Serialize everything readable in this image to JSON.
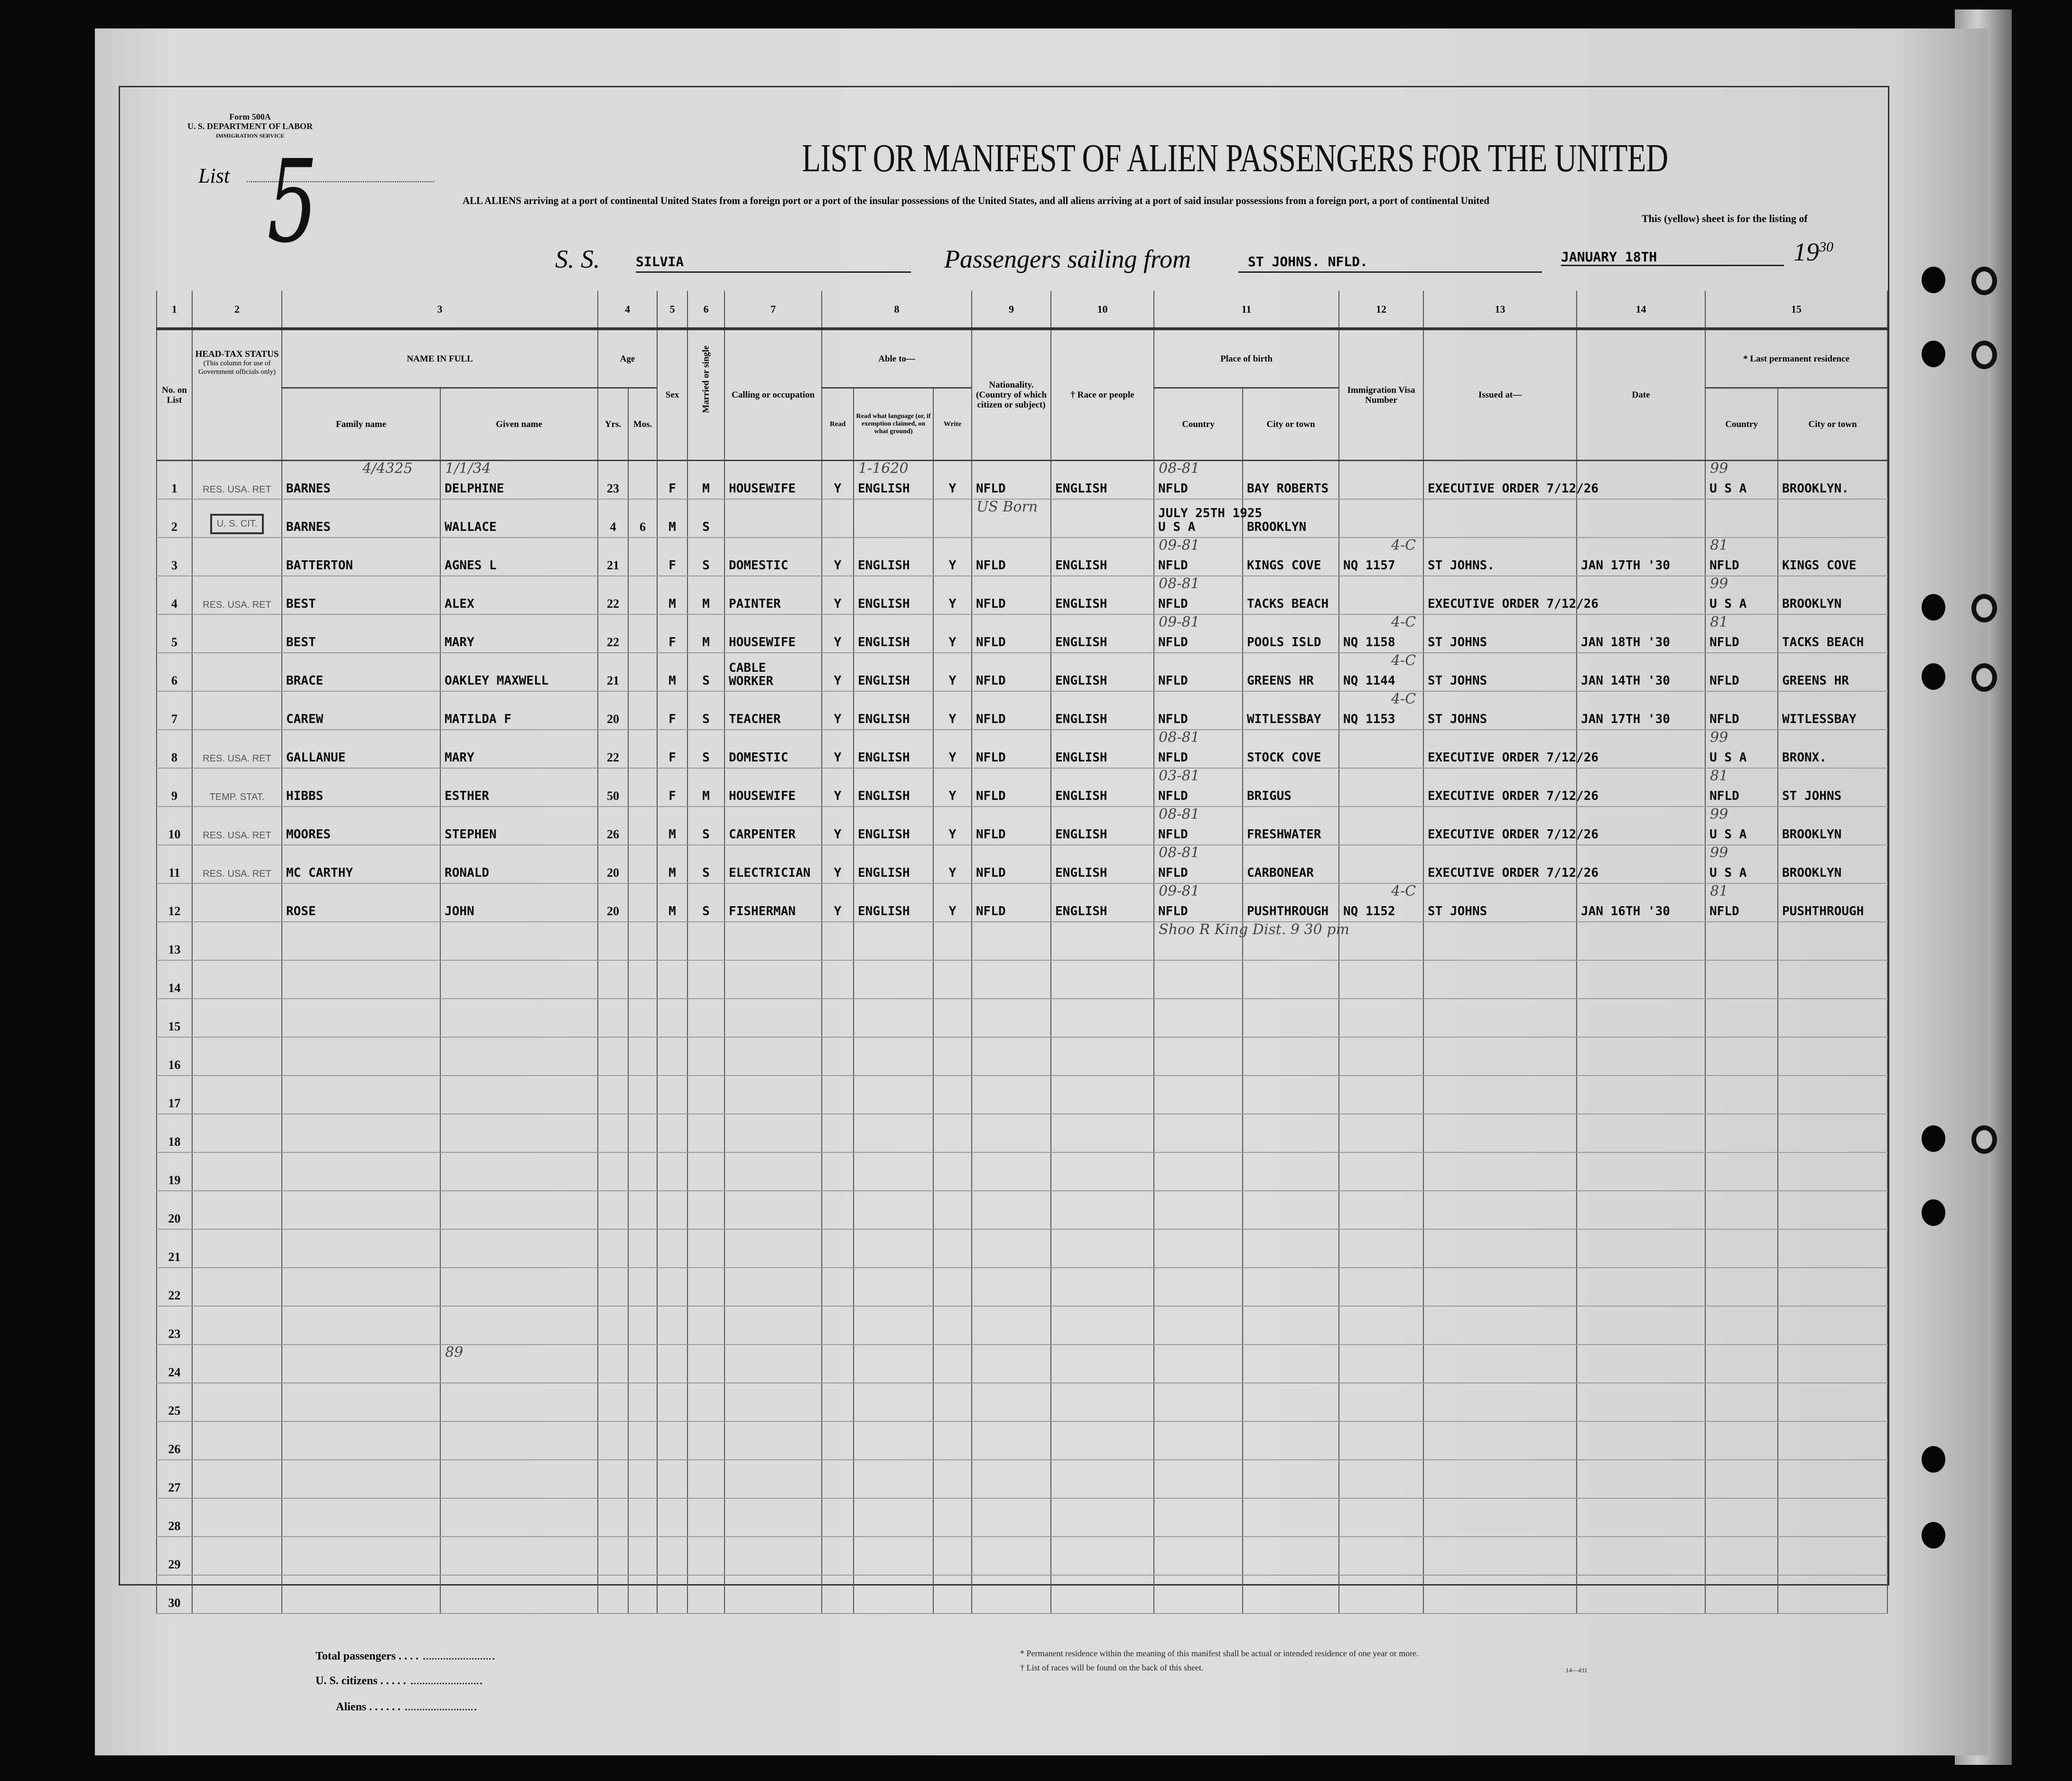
{
  "form": {
    "form_number": "Form 500A",
    "department": "U. S. DEPARTMENT OF LABOR",
    "service": "IMMIGRATION SERVICE",
    "list_label": "List",
    "list_number": "5",
    "title": "LIST OR MANIFEST OF ALIEN PASSENGERS FOR THE UNITED",
    "subtitle": "ALL ALIENS arriving at a port of continental United States from a foreign port or a port of the insular possessions of the United States, and all aliens arriving at a port of said insular possessions from a foreign port, a port of continental United",
    "subtitle2": "This (yellow) sheet is for the listing of"
  },
  "voyage": {
    "ss_label": "S. S.",
    "ship": "SILVIA",
    "sailing_label": "Passengers sailing from",
    "port": "ST JOHNS. NFLD.",
    "date": "JANUARY 18TH",
    "year_prefix": "19",
    "year_suffix": "30"
  },
  "columns": {
    "numbers": [
      "1",
      "2",
      "3",
      "4",
      "5",
      "6",
      "7",
      "8",
      "9",
      "10",
      "11",
      "12",
      "13",
      "14",
      "15"
    ],
    "no_on_list": "No. on List",
    "head_tax": "HEAD-TAX STATUS",
    "head_tax_note": "(This column for use of Government officials only)",
    "name_in_full": "NAME IN FULL",
    "family_name": "Family name",
    "given_name": "Given name",
    "age": "Age",
    "yrs": "Yrs.",
    "mos": "Mos.",
    "sex": "Sex",
    "married": "Married or single",
    "calling": "Calling or occupation",
    "able_to": "Able to—",
    "read": "Read",
    "read_language": "Read what language (or, if exemption claimed, on what ground)",
    "write": "Write",
    "nationality": "Nationality. (Country of which citizen or subject)",
    "race": "† Race or people",
    "place_of_birth": "Place of birth",
    "country": "Country",
    "city": "City or town",
    "visa": "Immigration Visa Number",
    "issued": "Issued at—",
    "date": "Date",
    "last_residence": "* Last permanent residence",
    "res_country": "Country",
    "res_city": "City or town"
  },
  "passengers": [
    {
      "no": "1",
      "status": "RES. USA. RET",
      "family": "BARNES",
      "given": "DELPHINE",
      "yrs": "23",
      "mos": "",
      "sex": "F",
      "married": "M",
      "calling": "HOUSEWIFE",
      "read": "Y",
      "language": "ENGLISH",
      "write": "Y",
      "nationality": "NFLD",
      "race": "ENGLISH",
      "birth_country": "NFLD",
      "birth_city": "BAY ROBERTS",
      "visa": "",
      "issued": "EXECUTIVE ORDER 7/12/26",
      "visa_date": "",
      "res_country": "U S A",
      "res_city": "BROOKLYN."
    },
    {
      "no": "2",
      "status": "U. S. CIT.",
      "family": "BARNES",
      "given": "WALLACE",
      "yrs": "4",
      "mos": "6",
      "sex": "M",
      "married": "S",
      "calling": "",
      "read": "",
      "language": "",
      "write": "",
      "nationality": "",
      "race": "",
      "birth_note": "JULY 25TH 1925",
      "birth_country": "U S A",
      "birth_city": "BROOKLYN",
      "visa": "",
      "issued": "",
      "visa_date": "",
      "res_country": "",
      "res_city": ""
    },
    {
      "no": "3",
      "status": "",
      "family": "BATTERTON",
      "given": "AGNES L",
      "yrs": "21",
      "mos": "",
      "sex": "F",
      "married": "S",
      "calling": "DOMESTIC",
      "read": "Y",
      "language": "ENGLISH",
      "write": "Y",
      "nationality": "NFLD",
      "race": "ENGLISH",
      "birth_country": "NFLD",
      "birth_city": "KINGS COVE",
      "visa": "NQ 1157",
      "issued": "ST JOHNS.",
      "visa_date": "JAN 17TH '30",
      "res_country": "NFLD",
      "res_city": "KINGS COVE"
    },
    {
      "no": "4",
      "status": "RES. USA. RET",
      "family": "BEST",
      "given": "ALEX",
      "yrs": "22",
      "mos": "",
      "sex": "M",
      "married": "M",
      "calling": "PAINTER",
      "read": "Y",
      "language": "ENGLISH",
      "write": "Y",
      "nationality": "NFLD",
      "race": "ENGLISH",
      "birth_country": "NFLD",
      "birth_city": "TACKS BEACH",
      "visa": "",
      "issued": "EXECUTIVE ORDER 7/12/26",
      "visa_date": "",
      "res_country": "U S A",
      "res_city": "BROOKLYN"
    },
    {
      "no": "5",
      "status": "",
      "family": "BEST",
      "given": "MARY",
      "yrs": "22",
      "mos": "",
      "sex": "F",
      "married": "M",
      "calling": "HOUSEWIFE",
      "read": "Y",
      "language": "ENGLISH",
      "write": "Y",
      "nationality": "NFLD",
      "race": "ENGLISH",
      "birth_country": "NFLD",
      "birth_city": "POOLS ISLD",
      "visa": "NQ 1158",
      "issued": "ST JOHNS",
      "visa_date": "JAN 18TH '30",
      "res_country": "NFLD",
      "res_city": "TACKS BEACH"
    },
    {
      "no": "6",
      "status": "",
      "family": "BRACE",
      "given": "OAKLEY MAXWELL",
      "yrs": "21",
      "mos": "",
      "sex": "M",
      "married": "S",
      "calling": "CABLE WORKER",
      "read": "Y",
      "language": "ENGLISH",
      "write": "Y",
      "nationality": "NFLD",
      "race": "ENGLISH",
      "birth_country": "NFLD",
      "birth_city": "GREENS HR",
      "visa": "NQ 1144",
      "issued": "ST JOHNS",
      "visa_date": "JAN 14TH '30",
      "res_country": "NFLD",
      "res_city": "GREENS HR"
    },
    {
      "no": "7",
      "status": "",
      "family": "CAREW",
      "given": "MATILDA F",
      "yrs": "20",
      "mos": "",
      "sex": "F",
      "married": "S",
      "calling": "TEACHER",
      "read": "Y",
      "language": "ENGLISH",
      "write": "Y",
      "nationality": "NFLD",
      "race": "ENGLISH",
      "birth_country": "NFLD",
      "birth_city": "WITLESSBAY",
      "visa": "NQ 1153",
      "issued": "ST JOHNS",
      "visa_date": "JAN 17TH '30",
      "res_country": "NFLD",
      "res_city": "WITLESSBAY"
    },
    {
      "no": "8",
      "status": "RES. USA. RET",
      "family": "GALLANUE",
      "given": "MARY",
      "yrs": "22",
      "mos": "",
      "sex": "F",
      "married": "S",
      "calling": "DOMESTIC",
      "read": "Y",
      "language": "ENGLISH",
      "write": "Y",
      "nationality": "NFLD",
      "race": "ENGLISH",
      "birth_country": "NFLD",
      "birth_city": "STOCK COVE",
      "visa": "",
      "issued": "EXECUTIVE ORDER 7/12/26",
      "visa_date": "",
      "res_country": "U S A",
      "res_city": "BRONX."
    },
    {
      "no": "9",
      "status": "TEMP. STAT.",
      "family": "HIBBS",
      "given": "ESTHER",
      "yrs": "50",
      "mos": "",
      "sex": "F",
      "married": "M",
      "calling": "HOUSEWIFE",
      "read": "Y",
      "language": "ENGLISH",
      "write": "Y",
      "nationality": "NFLD",
      "race": "ENGLISH",
      "birth_country": "NFLD",
      "birth_city": "BRIGUS",
      "visa": "",
      "issued": "EXECUTIVE ORDER 7/12/26",
      "visa_date": "",
      "res_country": "NFLD",
      "res_city": "ST JOHNS"
    },
    {
      "no": "10",
      "status": "RES. USA. RET",
      "family": "MOORES",
      "given": "STEPHEN",
      "yrs": "26",
      "mos": "",
      "sex": "M",
      "married": "S",
      "calling": "CARPENTER",
      "read": "Y",
      "language": "ENGLISH",
      "write": "Y",
      "nationality": "NFLD",
      "race": "ENGLISH",
      "birth_country": "NFLD",
      "birth_city": "FRESHWATER",
      "visa": "",
      "issued": "EXECUTIVE ORDER 7/12/26",
      "visa_date": "",
      "res_country": "U S A",
      "res_city": "BROOKLYN"
    },
    {
      "no": "11",
      "status": "RES. USA. RET",
      "family": "MC CARTHY",
      "given": "RONALD",
      "yrs": "20",
      "mos": "",
      "sex": "M",
      "married": "S",
      "calling": "ELECTRICIAN",
      "read": "Y",
      "language": "ENGLISH",
      "write": "Y",
      "nationality": "NFLD",
      "race": "ENGLISH",
      "birth_country": "NFLD",
      "birth_city": "CARBONEAR",
      "visa": "",
      "issued": "EXECUTIVE ORDER 7/12/26",
      "visa_date": "",
      "res_country": "U S A",
      "res_city": "BROOKLYN"
    },
    {
      "no": "12",
      "status": "",
      "family": "ROSE",
      "given": "JOHN",
      "yrs": "20",
      "mos": "",
      "sex": "M",
      "married": "S",
      "calling": "FISHERMAN",
      "read": "Y",
      "language": "ENGLISH",
      "write": "Y",
      "nationality": "NFLD",
      "race": "ENGLISH",
      "birth_country": "NFLD",
      "birth_city": "PUSHTHROUGH",
      "visa": "NQ 1152",
      "issued": "ST JOHNS",
      "visa_date": "JAN 16TH '30",
      "res_country": "NFLD",
      "res_city": "PUSHTHROUGH"
    }
  ],
  "empty_rows": [
    "13",
    "14",
    "15",
    "16",
    "17",
    "18",
    "19",
    "20",
    "21",
    "22",
    "23",
    "24",
    "25",
    "26",
    "27",
    "28",
    "29",
    "30"
  ],
  "handwritten": [
    {
      "text": "4/4325",
      "row": 0,
      "col": "family"
    },
    {
      "text": "1/1/34",
      "row": 0,
      "col": "given"
    },
    {
      "text": "1-1620",
      "row": 0,
      "col": "language"
    },
    {
      "text": "US Born",
      "row": 1,
      "col": "nationality"
    },
    {
      "text": "08-81",
      "row": 0,
      "col": "birth_country"
    },
    {
      "text": "09-81",
      "row": 2,
      "col": "birth_country"
    },
    {
      "text": "08-81",
      "row": 3,
      "col": "birth_country"
    },
    {
      "text": "09-81",
      "row": 4,
      "col": "birth_country"
    },
    {
      "text": "08-81",
      "row": 7,
      "col": "birth_country"
    },
    {
      "text": "03-81",
      "row": 8,
      "col": "birth_country"
    },
    {
      "text": "08-81",
      "row": 9,
      "col": "birth_country"
    },
    {
      "text": "08-81",
      "row": 10,
      "col": "birth_country"
    },
    {
      "text": "09-81",
      "row": 11,
      "col": "birth_country"
    },
    {
      "text": "4-C",
      "row": 2,
      "col": "visa"
    },
    {
      "text": "4-C",
      "row": 4,
      "col": "visa"
    },
    {
      "text": "4-C",
      "row": 5,
      "col": "visa"
    },
    {
      "text": "4-C",
      "row": 6,
      "col": "visa"
    },
    {
      "text": "4-C",
      "row": 11,
      "col": "visa"
    },
    {
      "text": "99",
      "row": 0,
      "col": "res_country"
    },
    {
      "text": "81",
      "row": 2,
      "col": "res_country"
    },
    {
      "text": "99",
      "row": 3,
      "col": "res_country"
    },
    {
      "text": "81",
      "row": 4,
      "col": "res_country"
    },
    {
      "text": "99",
      "row": 7,
      "col": "res_country"
    },
    {
      "text": "81",
      "row": 8,
      "col": "res_country"
    },
    {
      "text": "99",
      "row": 9,
      "col": "res_country"
    },
    {
      "text": "99",
      "row": 10,
      "col": "res_country"
    },
    {
      "text": "81",
      "row": 11,
      "col": "res_country"
    },
    {
      "text": "Shoo R King Dist. 9 30 pm",
      "row": 12,
      "col": "birth_country"
    },
    {
      "text": "89",
      "row": 23,
      "col": "given"
    }
  ],
  "footer": {
    "total_passengers": "Total passengers . . . .",
    "us_citizens": "U. S. citizens . . . . .",
    "aliens": "Aliens . . . . . .",
    "note1": "* Permanent residence within the meaning of this manifest shall be actual or intended residence of one year or more.",
    "note2": "† List of races will be found on the back of this sheet.",
    "print_code": "14—431"
  },
  "colors": {
    "paper": "#dadada",
    "ink": "#0c0c0c",
    "pencil": "#444444",
    "background": "#0a0a0a"
  }
}
